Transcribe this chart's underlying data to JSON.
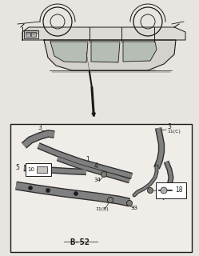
{
  "bg_color": "#e8e5e0",
  "white": "#ffffff",
  "black": "#1a1a1a",
  "gray_strip": "#787470",
  "gray_light": "#c0bdb8",
  "fig_width": 2.49,
  "fig_height": 3.2,
  "dpi": 100,
  "diagram_label": "B-52"
}
